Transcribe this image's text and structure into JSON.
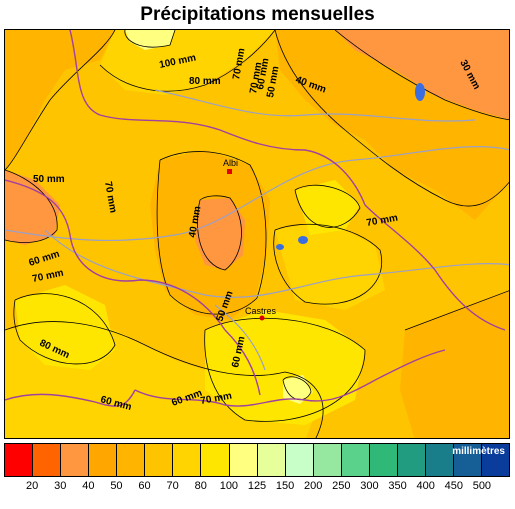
{
  "title": "Précipitations mensuelles",
  "legend": {
    "unit": "millimètres",
    "ticks": [
      "20",
      "30",
      "40",
      "50",
      "60",
      "70",
      "80",
      "100",
      "125",
      "150",
      "200",
      "250",
      "300",
      "350",
      "400",
      "450",
      "500"
    ],
    "colors": [
      "#ff0000",
      "#ff6400",
      "#ff9640",
      "#ffa600",
      "#ffb400",
      "#ffc400",
      "#ffd400",
      "#ffe600",
      "#ffff80",
      "#e6ff9a",
      "#c8ffc8",
      "#96e8a0",
      "#5ad28c",
      "#30b878",
      "#229c80",
      "#1a7d8a",
      "#155e96",
      "#0a3c9c"
    ]
  },
  "map": {
    "cities": [
      {
        "name": "Albi"
      },
      {
        "name": "Castres"
      }
    ],
    "contour_labels": [
      "100 mm",
      "80 mm",
      "70 mm",
      "60 mm",
      "50 mm",
      "40 mm",
      "30 mm",
      "70 mm",
      "50 mm",
      "70 mm",
      "40 mm",
      "70 mm",
      "60 mm",
      "70 mm",
      "60 mm",
      "50 mm",
      "80 mm",
      "60 mm",
      "60 mm",
      "70 mm",
      "80 mm",
      "70 mm",
      "60 mm"
    ],
    "colors": {
      "lt40": "#ff9640",
      "r40_50": "#ffa600",
      "r50_60": "#ffb400",
      "r60_70": "#ffc400",
      "r70_80": "#ffd400",
      "r80_100": "#ffe600",
      "r100_125": "#ffff80",
      "border": "#a040a0",
      "river": "#9aa0c8",
      "lake": "#3a6de0"
    }
  }
}
